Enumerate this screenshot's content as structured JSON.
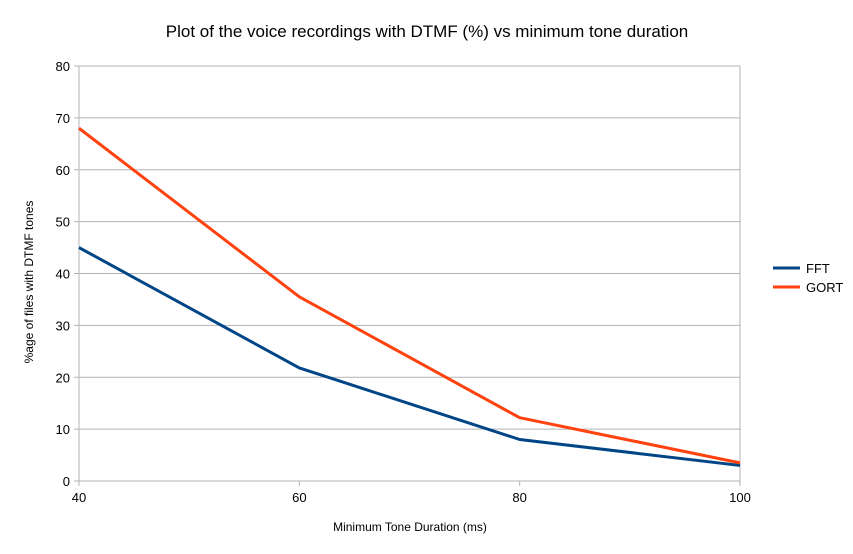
{
  "chart_data": {
    "type": "line",
    "title": "Plot of the voice recordings with DTMF (%) vs minimum tone duration",
    "xlabel": "Minimum Tone Duration (ms)",
    "ylabel": "%age of files with DTMF tones",
    "x": [
      40,
      60,
      80,
      100
    ],
    "xlim": [
      40,
      100
    ],
    "ylim": [
      0,
      80
    ],
    "yticks": [
      0,
      10,
      20,
      30,
      40,
      50,
      60,
      70,
      80
    ],
    "xticks": [
      40,
      60,
      80,
      100
    ],
    "grid": "horizontal",
    "legend_position": "right",
    "series": [
      {
        "name": "FFT",
        "color": "#004586",
        "values": [
          45,
          21.8,
          8,
          3
        ]
      },
      {
        "name": "GORT",
        "color": "#ff420e",
        "values": [
          68,
          35.5,
          12.2,
          3.5
        ]
      }
    ]
  }
}
